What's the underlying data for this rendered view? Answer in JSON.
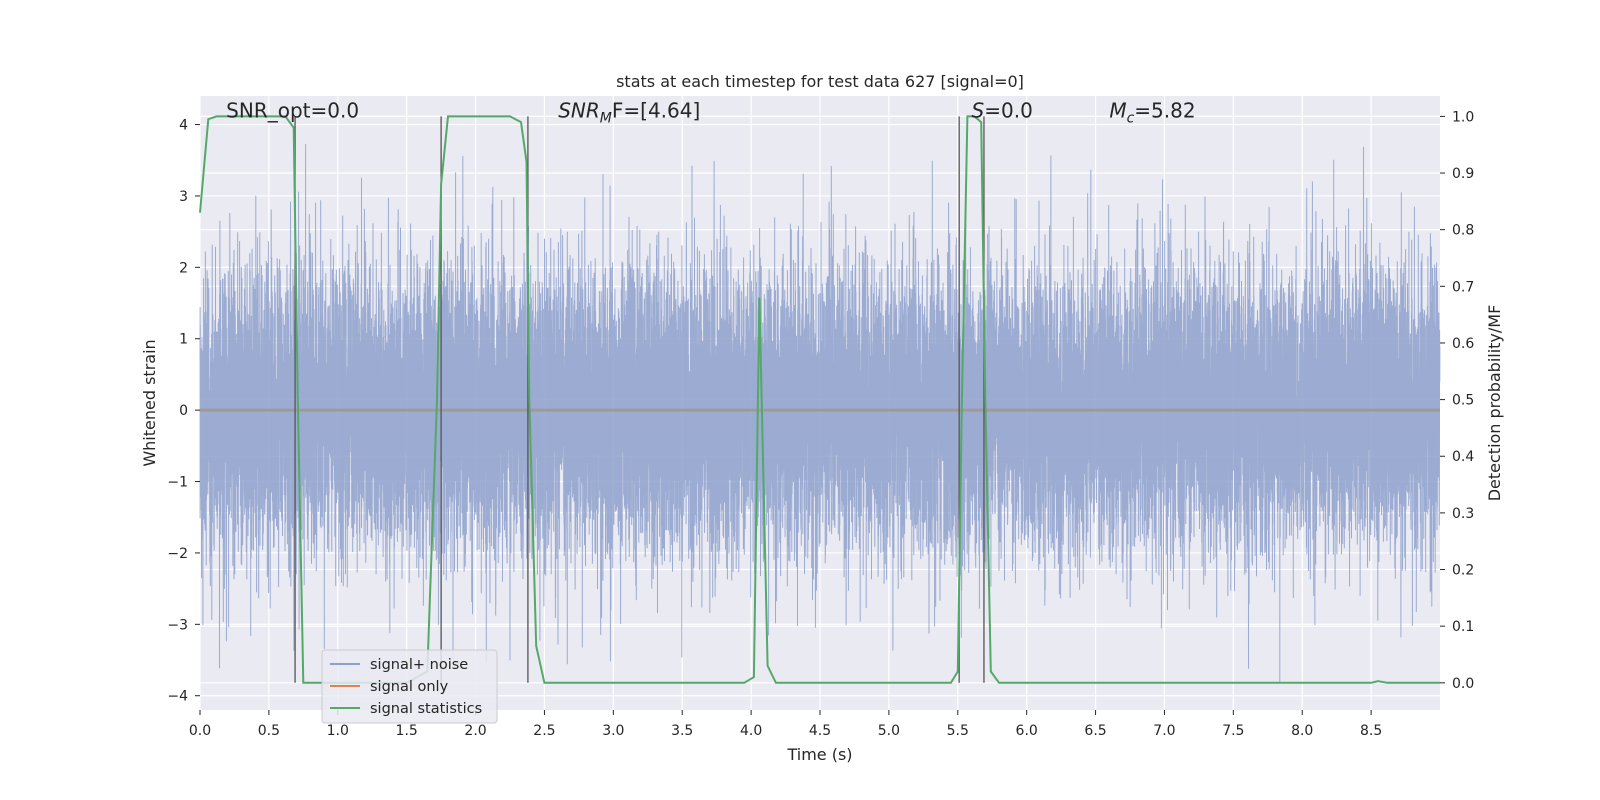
{
  "chart_data": {
    "type": "line",
    "title": "stats at each timestep for test data 627 [signal=0]",
    "xlabel": "Time (s)",
    "ylabel": "Whitened strain",
    "y2label": "Detection probability/MF",
    "xlim": [
      0.0,
      9.0
    ],
    "ylim": [
      -4.2,
      4.4
    ],
    "y2lim": [
      -0.048,
      1.036
    ],
    "x_ticks": [
      0.0,
      0.5,
      1.0,
      1.5,
      2.0,
      2.5,
      3.0,
      3.5,
      4.0,
      4.5,
      5.0,
      5.5,
      6.0,
      6.5,
      7.0,
      7.5,
      8.0,
      8.5
    ],
    "x_tick_labels": [
      "0.0",
      "0.5",
      "1.0",
      "1.5",
      "2.0",
      "2.5",
      "3.0",
      "3.5",
      "4.0",
      "4.5",
      "5.0",
      "5.5",
      "6.0",
      "6.5",
      "7.0",
      "7.5",
      "8.0",
      "8.5"
    ],
    "y_ticks": [
      -4,
      -3,
      -2,
      -1,
      0,
      1,
      2,
      3,
      4
    ],
    "y_tick_labels": [
      "−4",
      "−3",
      "−2",
      "−1",
      "0",
      "1",
      "2",
      "3",
      "4"
    ],
    "y2_ticks": [
      0.0,
      0.1,
      0.2,
      0.3,
      0.4,
      0.5,
      0.6,
      0.7,
      0.8,
      0.9,
      1.0
    ],
    "y2_tick_labels": [
      "0.0",
      "0.1",
      "0.2",
      "0.3",
      "0.4",
      "0.5",
      "0.6",
      "0.7",
      "0.8",
      "0.9",
      "1.0"
    ],
    "grid": true,
    "legend_position": "lower-left",
    "series": [
      {
        "name": "signal+ noise",
        "axis": "left",
        "color": "#8da0cb",
        "style": "noise",
        "sample_rate_hz": 2048,
        "duration_s": 9.0,
        "amplitude_sigma": 1.0
      },
      {
        "name": "signal only",
        "axis": "left",
        "color": "#dd8452",
        "x": [
          0.0,
          9.0
        ],
        "y": [
          0.0,
          0.0
        ]
      },
      {
        "name": "signal statistics",
        "axis": "right",
        "color": "#55a868",
        "x": [
          0.0,
          0.06,
          0.12,
          0.25,
          0.5,
          0.62,
          0.68,
          0.71,
          0.75,
          0.8,
          1.0,
          1.5,
          1.65,
          1.72,
          1.75,
          1.8,
          2.0,
          2.25,
          2.33,
          2.37,
          2.39,
          2.44,
          2.5,
          3.0,
          3.5,
          3.95,
          4.02,
          4.06,
          4.12,
          4.18,
          4.5,
          5.0,
          5.45,
          5.5,
          5.53,
          5.57,
          5.62,
          5.67,
          5.7,
          5.74,
          5.8,
          6.0,
          7.0,
          8.0,
          8.5,
          8.55,
          8.62,
          9.0
        ],
        "y": [
          0.83,
          0.995,
          1.0,
          1.0,
          1.0,
          1.0,
          0.98,
          0.5,
          0.0,
          0.0,
          0.0,
          0.0,
          0.02,
          0.5,
          0.88,
          1.0,
          1.0,
          1.0,
          0.99,
          0.92,
          0.5,
          0.065,
          0.0,
          0.0,
          0.0,
          0.0,
          0.01,
          0.68,
          0.03,
          0.0,
          0.0,
          0.0,
          0.0,
          0.02,
          0.5,
          1.0,
          1.0,
          0.99,
          0.5,
          0.02,
          0.0,
          0.0,
          0.0,
          0.0,
          0.0,
          0.003,
          0.0,
          0.0
        ]
      }
    ],
    "vlines": [
      0.69,
      1.75,
      2.38,
      5.51,
      5.69
    ],
    "vline_color": "#555555",
    "annotations": [
      {
        "text": "SNR_opt=0.0",
        "x": 0.19,
        "y": 4.1
      },
      {
        "base": "SNR",
        "sub": "M",
        "rest": "F=[4.64]",
        "x": 2.6,
        "y": 4.1
      },
      {
        "base": "S",
        "sub": "",
        "rest": "=0.0",
        "x": 5.6,
        "y": 4.1
      },
      {
        "base": "M",
        "sub": "c",
        "rest": "=5.82",
        "x": 6.6,
        "y": 4.1
      }
    ]
  }
}
